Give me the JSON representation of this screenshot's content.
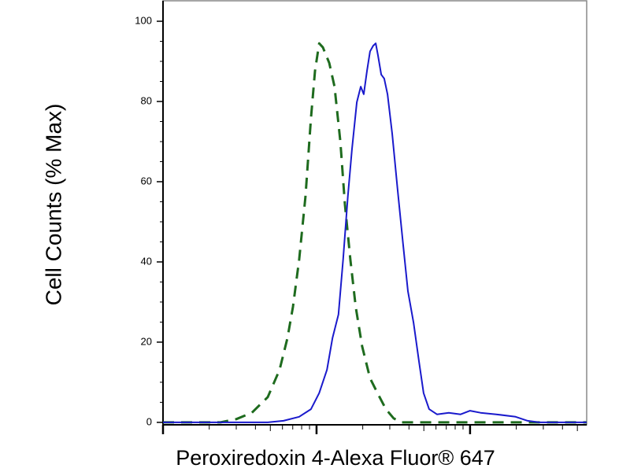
{
  "chart_data": {
    "type": "line",
    "xlabel": "Peroxiredoxin 4-Alexa Fluor® 647",
    "ylabel": "Cell Counts (% Max)",
    "xscale": "log",
    "xlim": [
      1,
      575
    ],
    "xticks": [
      1,
      10,
      100
    ],
    "ylim": [
      -1,
      105.3
    ],
    "yticks": [
      0,
      20,
      40,
      60,
      80,
      100
    ],
    "series": [
      {
        "color": "#1e6b1e",
        "dash": true,
        "x": [
          1,
          2.37,
          3.0,
          3.79,
          4.81,
          5.74,
          6.46,
          7.02,
          7.71,
          8.47,
          9.2,
          9.77,
          10.4,
          11.0,
          12.1,
          13.1,
          14.3,
          15.3,
          16.6,
          18.0,
          19.8,
          22.3,
          25.1,
          28.3,
          31.8,
          35.8,
          104,
          574
        ],
        "values": [
          0,
          0,
          0.8,
          2.4,
          6.3,
          13.1,
          21,
          28.8,
          40.6,
          56.3,
          75.9,
          87.6,
          94.5,
          93.5,
          89.6,
          83.7,
          70,
          54.3,
          40.6,
          28.8,
          19,
          11,
          7.1,
          3.3,
          1,
          0,
          0,
          0
        ]
      },
      {
        "color": "#1a1acc",
        "dash": false,
        "x": [
          1,
          4.81,
          6.09,
          7.71,
          9.2,
          10.4,
          11.7,
          12.7,
          13.9,
          14.9,
          16.0,
          17.0,
          18.3,
          19.4,
          20.3,
          21.3,
          22.3,
          23.4,
          24.3,
          25.1,
          26.4,
          27.6,
          29.0,
          31.1,
          33.7,
          36.6,
          39.4,
          42.8,
          46.5,
          49.8,
          54.1,
          60.9,
          72.7,
          86.8,
          100,
          117,
          148,
          198,
          237,
          282,
          574
        ],
        "values": [
          0,
          0,
          0.4,
          1.4,
          3.3,
          7.3,
          13.1,
          21,
          26.9,
          40.6,
          56.3,
          68,
          79.8,
          83.7,
          81.8,
          87.6,
          92.5,
          93.9,
          94.5,
          91.6,
          86.7,
          85.7,
          81.8,
          72,
          58.2,
          44.5,
          32.7,
          24.9,
          15.1,
          7.3,
          3.3,
          2,
          2.4,
          2,
          2.9,
          2.4,
          2,
          1.4,
          0.4,
          0,
          0
        ]
      }
    ]
  }
}
